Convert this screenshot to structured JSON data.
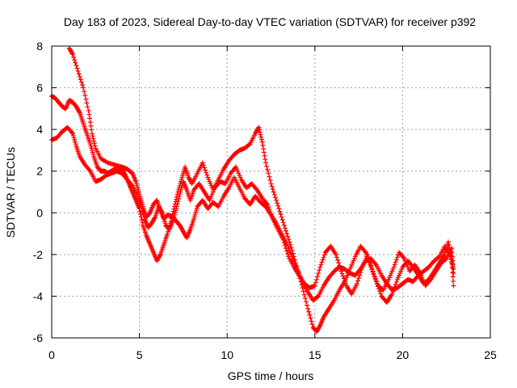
{
  "chart_data": {
    "type": "scatter",
    "title": "Day 183 of 2023, Sidereal Day-to-day VTEC variation (SDTVAR) for receiver p392",
    "xlabel": "GPS time / hours",
    "ylabel": "SDTVAR / TECUs",
    "xlim": [
      0,
      25
    ],
    "ylim": [
      -6,
      8
    ],
    "xticks": [
      0,
      5,
      10,
      15,
      20,
      25
    ],
    "yticks": [
      -6,
      -4,
      -2,
      0,
      2,
      4,
      6,
      8
    ],
    "grid": true,
    "marker": "plus",
    "color": "#ff0000",
    "series": [
      {
        "name": "trace-a",
        "points": [
          [
            1.0,
            7.9
          ],
          [
            1.2,
            7.6
          ],
          [
            1.5,
            6.8
          ],
          [
            1.8,
            6.0
          ],
          [
            2.1,
            4.9
          ],
          [
            2.3,
            3.8
          ],
          [
            2.5,
            3.1
          ],
          [
            2.8,
            2.6
          ],
          [
            3.2,
            2.4
          ],
          [
            3.6,
            2.3
          ],
          [
            4.0,
            2.2
          ],
          [
            4.3,
            2.1
          ],
          [
            4.6,
            1.9
          ],
          [
            4.8,
            1.5
          ],
          [
            5.0,
            0.9
          ],
          [
            5.2,
            0.3
          ],
          [
            5.4,
            -0.2
          ],
          [
            5.6,
            0.0
          ],
          [
            5.8,
            0.4
          ],
          [
            6.0,
            0.6
          ],
          [
            6.2,
            0.1
          ],
          [
            6.4,
            -0.3
          ],
          [
            6.6,
            -0.1
          ],
          [
            6.9,
            -0.2
          ],
          [
            7.1,
            -0.4
          ],
          [
            7.3,
            -0.6
          ],
          [
            7.5,
            -0.9
          ],
          [
            7.7,
            -1.2
          ],
          [
            7.9,
            -0.8
          ],
          [
            8.1,
            -0.3
          ],
          [
            8.3,
            0.3
          ],
          [
            8.6,
            0.6
          ],
          [
            8.9,
            0.2
          ],
          [
            9.2,
            0.5
          ],
          [
            9.5,
            0.3
          ],
          [
            9.8,
            0.8
          ],
          [
            10.1,
            1.2
          ],
          [
            10.4,
            1.7
          ],
          [
            10.7,
            1.2
          ],
          [
            11.0,
            0.7
          ],
          [
            11.3,
            0.4
          ],
          [
            11.6,
            0.8
          ],
          [
            11.9,
            0.5
          ],
          [
            12.2,
            0.3
          ],
          [
            12.5,
            -0.1
          ],
          [
            12.8,
            -0.5
          ],
          [
            13.1,
            -1.0
          ],
          [
            13.4,
            -1.5
          ],
          [
            13.7,
            -2.1
          ],
          [
            14.0,
            -2.7
          ],
          [
            14.3,
            -3.3
          ],
          [
            14.6,
            -3.8
          ],
          [
            14.9,
            -4.2
          ],
          [
            15.2,
            -4.0
          ],
          [
            15.5,
            -3.5
          ],
          [
            15.8,
            -3.1
          ],
          [
            16.1,
            -2.8
          ],
          [
            16.4,
            -2.6
          ],
          [
            16.7,
            -2.7
          ],
          [
            17.0,
            -2.9
          ],
          [
            17.3,
            -3.0
          ],
          [
            17.6,
            -2.7
          ],
          [
            17.9,
            -2.3
          ],
          [
            18.2,
            -2.2
          ],
          [
            18.5,
            -2.5
          ],
          [
            18.8,
            -3.0
          ],
          [
            19.1,
            -3.4
          ],
          [
            19.4,
            -3.7
          ],
          [
            19.7,
            -3.6
          ],
          [
            20.0,
            -3.4
          ],
          [
            20.3,
            -3.2
          ],
          [
            20.6,
            -3.3
          ],
          [
            20.9,
            -3.0
          ],
          [
            21.2,
            -2.8
          ],
          [
            21.5,
            -2.6
          ],
          [
            21.8,
            -2.3
          ],
          [
            22.1,
            -2.1
          ],
          [
            22.4,
            -1.6
          ],
          [
            22.7,
            -2.0
          ],
          [
            22.9,
            -2.7
          ]
        ]
      },
      {
        "name": "trace-b",
        "points": [
          [
            0.0,
            5.6
          ],
          [
            0.2,
            5.5
          ],
          [
            0.4,
            5.3
          ],
          [
            0.6,
            5.1
          ],
          [
            0.8,
            5.0
          ],
          [
            1.0,
            5.4
          ],
          [
            1.2,
            5.3
          ],
          [
            1.4,
            5.1
          ],
          [
            1.6,
            4.8
          ],
          [
            1.8,
            4.3
          ],
          [
            2.0,
            3.8
          ],
          [
            2.2,
            3.3
          ],
          [
            2.4,
            2.7
          ],
          [
            2.6,
            2.2
          ],
          [
            2.8,
            2.0
          ],
          [
            3.0,
            2.0
          ],
          [
            3.2,
            1.9
          ],
          [
            3.4,
            2.0
          ],
          [
            3.6,
            2.1
          ],
          [
            3.8,
            2.2
          ],
          [
            4.0,
            2.1
          ],
          [
            4.2,
            1.8
          ],
          [
            4.4,
            1.4
          ],
          [
            4.6,
            1.0
          ],
          [
            4.8,
            0.6
          ],
          [
            5.0,
            0.2
          ],
          [
            5.2,
            -0.6
          ],
          [
            5.4,
            -1.1
          ],
          [
            5.6,
            -1.5
          ],
          [
            5.8,
            -1.9
          ],
          [
            6.0,
            -2.3
          ],
          [
            6.2,
            -2.0
          ],
          [
            6.4,
            -1.5
          ],
          [
            6.6,
            -1.0
          ],
          [
            6.8,
            -0.4
          ],
          [
            7.0,
            0.3
          ],
          [
            7.2,
            1.0
          ],
          [
            7.4,
            1.6
          ],
          [
            7.6,
            2.2
          ],
          [
            7.8,
            1.7
          ],
          [
            8.0,
            1.4
          ],
          [
            8.3,
            1.9
          ],
          [
            8.6,
            2.4
          ],
          [
            8.9,
            1.7
          ],
          [
            9.2,
            1.1
          ],
          [
            9.5,
            1.6
          ],
          [
            9.8,
            2.1
          ],
          [
            10.1,
            2.5
          ],
          [
            10.4,
            2.8
          ],
          [
            10.7,
            3.0
          ],
          [
            11.0,
            3.1
          ],
          [
            11.3,
            3.3
          ],
          [
            11.6,
            3.8
          ],
          [
            11.8,
            4.1
          ],
          [
            12.0,
            3.4
          ],
          [
            12.2,
            2.4
          ],
          [
            12.5,
            1.4
          ],
          [
            12.8,
            0.6
          ],
          [
            13.1,
            -0.2
          ],
          [
            13.4,
            -1.0
          ],
          [
            13.7,
            -1.8
          ],
          [
            14.0,
            -2.7
          ],
          [
            14.3,
            -3.6
          ],
          [
            14.6,
            -4.6
          ],
          [
            14.9,
            -5.5
          ],
          [
            15.1,
            -5.7
          ],
          [
            15.3,
            -5.4
          ],
          [
            15.5,
            -5.0
          ],
          [
            15.8,
            -4.6
          ],
          [
            16.1,
            -4.2
          ],
          [
            16.4,
            -3.7
          ],
          [
            16.7,
            -3.3
          ],
          [
            17.0,
            -2.7
          ],
          [
            17.3,
            -2.1
          ],
          [
            17.6,
            -1.6
          ],
          [
            17.9,
            -1.9
          ],
          [
            18.2,
            -2.6
          ],
          [
            18.5,
            -3.3
          ],
          [
            18.8,
            -4.0
          ],
          [
            19.1,
            -4.3
          ],
          [
            19.4,
            -3.9
          ],
          [
            19.7,
            -3.2
          ],
          [
            20.0,
            -2.6
          ],
          [
            20.3,
            -2.3
          ],
          [
            20.6,
            -2.6
          ],
          [
            20.9,
            -3.0
          ],
          [
            21.2,
            -3.4
          ],
          [
            21.5,
            -3.2
          ],
          [
            21.8,
            -2.8
          ],
          [
            22.1,
            -2.4
          ],
          [
            22.4,
            -2.0
          ],
          [
            22.6,
            -1.4
          ],
          [
            22.8,
            -2.2
          ],
          [
            22.9,
            -3.5
          ]
        ]
      },
      {
        "name": "trace-c",
        "points": [
          [
            0.0,
            3.5
          ],
          [
            0.3,
            3.6
          ],
          [
            0.6,
            3.9
          ],
          [
            0.9,
            4.1
          ],
          [
            1.2,
            3.8
          ],
          [
            1.4,
            3.2
          ],
          [
            1.6,
            2.7
          ],
          [
            1.9,
            2.3
          ],
          [
            2.2,
            2.0
          ],
          [
            2.5,
            1.5
          ],
          [
            2.8,
            1.6
          ],
          [
            3.1,
            1.8
          ],
          [
            3.4,
            1.9
          ],
          [
            3.7,
            2.0
          ],
          [
            4.0,
            1.9
          ],
          [
            4.3,
            1.6
          ],
          [
            4.6,
            1.3
          ],
          [
            4.9,
            0.8
          ],
          [
            5.1,
            0.3
          ],
          [
            5.3,
            -0.3
          ],
          [
            5.5,
            -0.7
          ],
          [
            5.7,
            -0.5
          ],
          [
            5.9,
            -0.2
          ],
          [
            6.1,
            0.3
          ],
          [
            6.3,
            0.0
          ],
          [
            6.5,
            -0.6
          ],
          [
            6.7,
            -0.8
          ],
          [
            6.9,
            -0.4
          ],
          [
            7.1,
            0.2
          ],
          [
            7.3,
            0.9
          ],
          [
            7.5,
            1.5
          ],
          [
            7.7,
            1.1
          ],
          [
            7.9,
            0.6
          ],
          [
            8.1,
            1.1
          ],
          [
            8.4,
            1.4
          ],
          [
            8.7,
            1.0
          ],
          [
            9.0,
            0.6
          ],
          [
            9.3,
            1.2
          ],
          [
            9.6,
            1.5
          ],
          [
            9.9,
            1.4
          ],
          [
            10.2,
            1.9
          ],
          [
            10.5,
            2.2
          ],
          [
            10.8,
            1.6
          ],
          [
            11.1,
            1.2
          ],
          [
            11.4,
            1.4
          ],
          [
            11.7,
            1.1
          ],
          [
            12.0,
            0.7
          ],
          [
            12.3,
            0.4
          ],
          [
            12.6,
            -0.3
          ],
          [
            12.9,
            -0.8
          ],
          [
            13.2,
            -1.3
          ],
          [
            13.5,
            -2.1
          ],
          [
            13.8,
            -2.6
          ],
          [
            14.1,
            -3.0
          ],
          [
            14.4,
            -3.4
          ],
          [
            14.7,
            -3.6
          ],
          [
            15.0,
            -3.5
          ],
          [
            15.3,
            -2.6
          ],
          [
            15.6,
            -1.9
          ],
          [
            15.9,
            -1.6
          ],
          [
            16.2,
            -2.0
          ],
          [
            16.5,
            -2.8
          ],
          [
            16.8,
            -3.5
          ],
          [
            17.1,
            -3.9
          ],
          [
            17.4,
            -3.4
          ],
          [
            17.7,
            -2.6
          ],
          [
            18.0,
            -2.0
          ],
          [
            18.3,
            -2.8
          ],
          [
            18.6,
            -3.5
          ],
          [
            18.9,
            -3.7
          ],
          [
            19.2,
            -3.2
          ],
          [
            19.5,
            -2.6
          ],
          [
            19.8,
            -1.9
          ],
          [
            20.1,
            -2.2
          ],
          [
            20.4,
            -2.8
          ],
          [
            20.7,
            -2.5
          ],
          [
            21.0,
            -2.9
          ],
          [
            21.3,
            -3.5
          ],
          [
            21.6,
            -3.2
          ],
          [
            21.9,
            -2.8
          ],
          [
            22.2,
            -2.4
          ],
          [
            22.5,
            -2.2
          ],
          [
            22.8,
            -1.7
          ],
          [
            22.9,
            -2.9
          ]
        ]
      }
    ]
  }
}
